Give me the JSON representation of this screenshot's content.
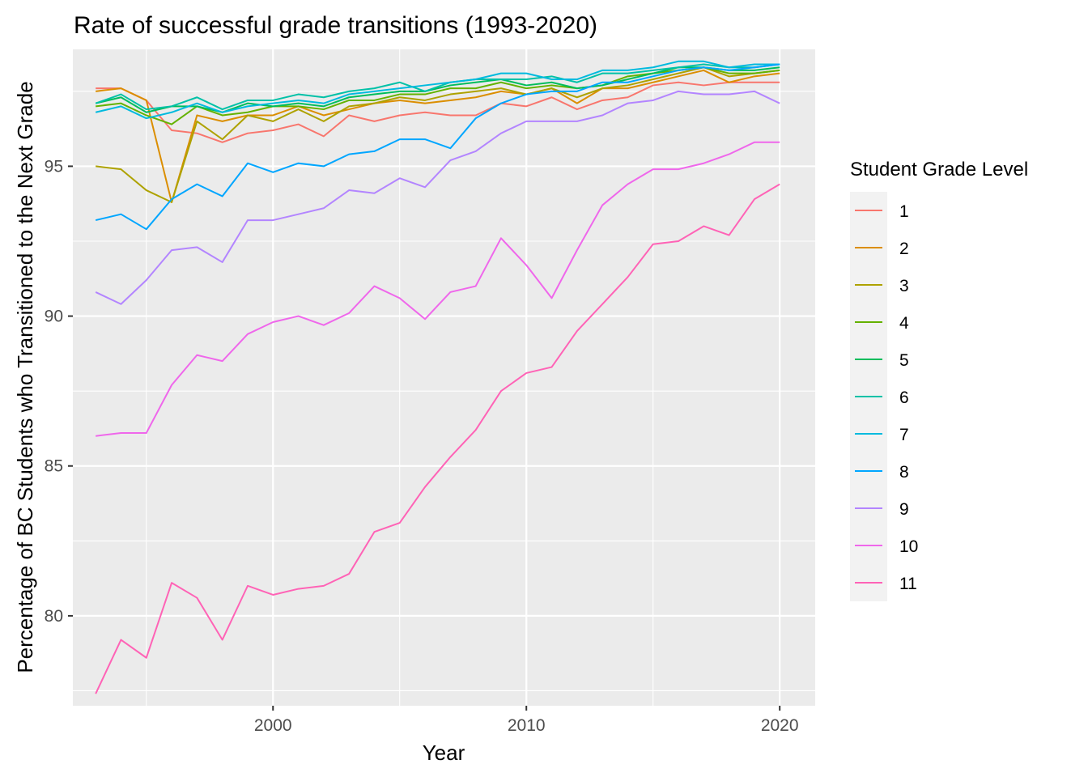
{
  "chart_data": {
    "type": "line",
    "title": "Rate of successful grade transitions (1993-2020)",
    "xlabel": "Year",
    "ylabel": "Percentage of BC Students who Transitioned to the Next Grade",
    "xlim": [
      1992.1,
      2021.4
    ],
    "ylim": [
      77.0,
      98.9
    ],
    "x_ticks": [
      2000,
      2010,
      2020
    ],
    "y_ticks": [
      80,
      85,
      90,
      95
    ],
    "grid": true,
    "legend_title": "Student Grade Level",
    "legend_position": "right",
    "x": [
      1993,
      1994,
      1995,
      1996,
      1997,
      1998,
      1999,
      2000,
      2001,
      2002,
      2003,
      2004,
      2005,
      2006,
      2007,
      2008,
      2009,
      2010,
      2011,
      2012,
      2013,
      2014,
      2015,
      2016,
      2017,
      2018,
      2019,
      2020
    ],
    "series": [
      {
        "name": "1",
        "color": "#F8766D",
        "values": [
          97.6,
          97.6,
          97.2,
          96.2,
          96.1,
          95.8,
          96.1,
          96.2,
          96.4,
          96.0,
          96.7,
          96.5,
          96.7,
          96.8,
          96.7,
          96.7,
          97.1,
          97.0,
          97.3,
          96.9,
          97.2,
          97.3,
          97.7,
          97.8,
          97.7,
          97.8,
          97.8,
          97.8
        ]
      },
      {
        "name": "2",
        "color": "#DB8E00",
        "values": [
          97.5,
          97.6,
          97.2,
          93.8,
          96.7,
          96.5,
          96.7,
          96.7,
          97.0,
          96.7,
          96.9,
          97.1,
          97.2,
          97.1,
          97.2,
          97.3,
          97.5,
          97.4,
          97.6,
          97.1,
          97.6,
          97.6,
          97.8,
          98.0,
          98.2,
          97.8,
          98.0,
          98.1
        ]
      },
      {
        "name": "3",
        "color": "#AEA200",
        "values": [
          95.0,
          94.9,
          94.2,
          93.8,
          96.5,
          95.9,
          96.7,
          96.5,
          96.9,
          96.5,
          97.0,
          97.1,
          97.3,
          97.2,
          97.4,
          97.5,
          97.6,
          97.4,
          97.6,
          97.3,
          97.6,
          97.7,
          97.9,
          98.1,
          98.3,
          98.0,
          98.1,
          98.2
        ]
      },
      {
        "name": "4",
        "color": "#64B200",
        "values": [
          97.0,
          97.1,
          96.7,
          96.4,
          97.0,
          96.7,
          96.8,
          97.0,
          97.0,
          96.9,
          97.2,
          97.2,
          97.4,
          97.4,
          97.6,
          97.6,
          97.8,
          97.6,
          97.7,
          97.6,
          97.7,
          98.0,
          98.1,
          98.2,
          98.3,
          98.1,
          98.1,
          98.2
        ]
      },
      {
        "name": "5",
        "color": "#00BD5C",
        "values": [
          97.1,
          97.3,
          96.8,
          97.0,
          97.0,
          96.8,
          97.1,
          97.0,
          97.1,
          97.0,
          97.3,
          97.4,
          97.5,
          97.5,
          97.7,
          97.8,
          97.9,
          97.7,
          97.8,
          97.6,
          97.7,
          97.9,
          98.1,
          98.3,
          98.3,
          98.2,
          98.2,
          98.3
        ]
      },
      {
        "name": "6",
        "color": "#00C1A7",
        "values": [
          97.1,
          97.4,
          96.9,
          97.0,
          97.3,
          96.9,
          97.2,
          97.2,
          97.4,
          97.3,
          97.5,
          97.6,
          97.8,
          97.5,
          97.8,
          97.9,
          97.9,
          97.9,
          98.0,
          97.8,
          98.1,
          98.1,
          98.2,
          98.3,
          98.4,
          98.3,
          98.3,
          98.4
        ]
      },
      {
        "name": "7",
        "color": "#00BADE",
        "values": [
          96.8,
          97.0,
          96.6,
          96.8,
          97.1,
          96.8,
          97.0,
          97.1,
          97.2,
          97.1,
          97.4,
          97.5,
          97.6,
          97.7,
          97.8,
          97.9,
          98.1,
          98.1,
          97.9,
          97.9,
          98.2,
          98.2,
          98.3,
          98.5,
          98.5,
          98.3,
          98.4,
          98.4
        ]
      },
      {
        "name": "8",
        "color": "#00A6FF",
        "values": [
          93.2,
          93.4,
          92.9,
          93.9,
          94.4,
          94.0,
          95.1,
          94.8,
          95.1,
          95.0,
          95.4,
          95.5,
          95.9,
          95.9,
          95.6,
          96.6,
          97.1,
          97.4,
          97.5,
          97.5,
          97.8,
          97.8,
          98.0,
          98.2,
          98.3,
          98.2,
          98.3,
          98.4
        ]
      },
      {
        "name": "9",
        "color": "#B385FF",
        "values": [
          90.8,
          90.4,
          91.2,
          92.2,
          92.3,
          91.8,
          93.2,
          93.2,
          93.4,
          93.6,
          94.2,
          94.1,
          94.6,
          94.3,
          95.2,
          95.5,
          96.1,
          96.5,
          96.5,
          96.5,
          96.7,
          97.1,
          97.2,
          97.5,
          97.4,
          97.4,
          97.5,
          97.1
        ]
      },
      {
        "name": "10",
        "color": "#EF67EB",
        "values": [
          86.0,
          86.1,
          86.1,
          87.7,
          88.7,
          88.5,
          89.4,
          89.8,
          90.0,
          89.7,
          90.1,
          91.0,
          90.6,
          89.9,
          90.8,
          91.0,
          92.6,
          91.7,
          90.6,
          92.2,
          93.7,
          94.4,
          94.9,
          94.9,
          95.1,
          95.4,
          95.8,
          95.8
        ]
      },
      {
        "name": "11",
        "color": "#FF63B6",
        "values": [
          77.4,
          79.2,
          78.6,
          81.1,
          80.6,
          79.2,
          81.0,
          80.7,
          80.9,
          81.0,
          81.4,
          82.8,
          83.1,
          84.3,
          85.3,
          86.2,
          87.5,
          88.1,
          88.3,
          89.5,
          90.4,
          91.3,
          92.4,
          92.5,
          93.0,
          92.7,
          93.9,
          94.4
        ]
      }
    ]
  }
}
